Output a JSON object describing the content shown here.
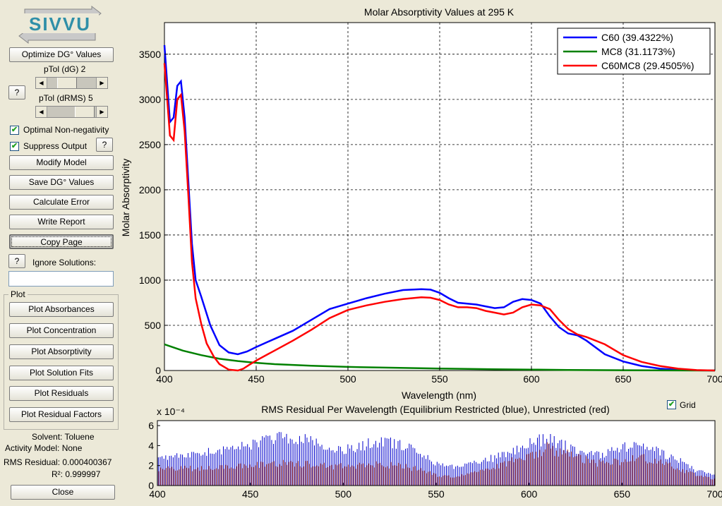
{
  "logo": {
    "text": "SIVVU"
  },
  "controls": {
    "optimize_label": "Optimize DG° Values",
    "ptol_dg_label": "pTol (dG) 2",
    "ptol_drms_label": "pTol (dRMS) 5",
    "help_label": "?",
    "optimal_nonneg_label": "Optimal Non-negativity",
    "optimal_nonneg_checked": true,
    "suppress_output_label": "Suppress Output",
    "suppress_output_checked": true,
    "modify_model_label": "Modify Model",
    "save_dg_label": "Save DG° Values",
    "calc_error_label": "Calculate Error",
    "write_report_label": "Write Report",
    "copy_page_label": "Copy Page",
    "ignore_solutions_label": "Ignore Solutions:",
    "ignore_solutions_value": ""
  },
  "plot_panel": {
    "title": "Plot",
    "buttons": [
      "Plot Absorbances",
      "Plot Concentration",
      "Plot Absorptivity",
      "Plot Solution Fits",
      "Plot Residuals",
      "Plot Residual Factors"
    ]
  },
  "info": {
    "solvent": "Solvent: Toluene",
    "activity_model": "Activity Model: None",
    "rms_residual": "RMS Residual: 0.000400367",
    "r2": "R²: 0.999997"
  },
  "close_label": "Close",
  "grid_toggle": {
    "label": "Grid",
    "checked": true
  },
  "colors": {
    "c60": "#0000ff",
    "mc8": "#008000",
    "c60mc8": "#ff0000",
    "bar_blue": "#0000cc",
    "bar_red": "#8b1a1a"
  },
  "chart_data": [
    {
      "type": "line",
      "title": "Molar Absorptivity Values at 295 K",
      "xlabel": "Wavelength (nm)",
      "ylabel": "Molar Absorptivity",
      "xlim": [
        400,
        700
      ],
      "ylim": [
        0,
        3850
      ],
      "xticks": [
        400,
        450,
        500,
        550,
        600,
        650,
        700
      ],
      "yticks": [
        0,
        500,
        1000,
        1500,
        2000,
        2500,
        3000,
        3500
      ],
      "grid": true,
      "legend_position": "top-right",
      "series": [
        {
          "name": "C60  (39.4322%)",
          "color": "#0000ff",
          "x": [
            400,
            403,
            405,
            407,
            409,
            411,
            413,
            415,
            417,
            420,
            425,
            430,
            435,
            440,
            445,
            450,
            460,
            470,
            480,
            490,
            500,
            510,
            520,
            530,
            540,
            545,
            550,
            555,
            560,
            565,
            570,
            575,
            580,
            585,
            590,
            595,
            600,
            605,
            610,
            615,
            620,
            625,
            630,
            640,
            650,
            660,
            670,
            680,
            690,
            700
          ],
          "y": [
            3600,
            2750,
            2800,
            3150,
            3200,
            2800,
            2100,
            1400,
            1000,
            820,
            500,
            280,
            200,
            180,
            210,
            260,
            350,
            440,
            560,
            680,
            740,
            800,
            850,
            890,
            900,
            895,
            860,
            800,
            750,
            740,
            730,
            710,
            690,
            700,
            760,
            790,
            780,
            740,
            600,
            480,
            410,
            390,
            330,
            180,
            100,
            50,
            20,
            8,
            2,
            0
          ]
        },
        {
          "name": "MC8  (31.1173%)",
          "color": "#008000",
          "x": [
            400,
            410,
            420,
            430,
            440,
            450,
            460,
            480,
            500,
            520,
            550,
            580,
            600,
            620,
            650,
            680,
            700
          ],
          "y": [
            290,
            220,
            170,
            130,
            105,
            85,
            70,
            52,
            40,
            32,
            22,
            14,
            10,
            6,
            3,
            1,
            0
          ]
        },
        {
          "name": "C60MC8  (29.4505%)",
          "color": "#ff0000",
          "x": [
            400,
            403,
            405,
            407,
            409,
            411,
            413,
            415,
            417,
            420,
            423,
            427,
            430,
            435,
            440,
            443,
            446,
            450,
            460,
            470,
            480,
            490,
            500,
            510,
            520,
            530,
            540,
            545,
            550,
            555,
            560,
            565,
            570,
            575,
            580,
            585,
            590,
            595,
            600,
            605,
            610,
            615,
            620,
            625,
            630,
            640,
            650,
            660,
            670,
            680,
            690,
            700
          ],
          "y": [
            3400,
            2600,
            2550,
            3000,
            3050,
            2650,
            1950,
            1200,
            800,
            520,
            300,
            150,
            70,
            10,
            0,
            20,
            60,
            110,
            220,
            330,
            450,
            580,
            670,
            720,
            760,
            790,
            810,
            805,
            780,
            730,
            700,
            700,
            690,
            660,
            640,
            620,
            640,
            700,
            730,
            720,
            680,
            560,
            460,
            400,
            370,
            290,
            170,
            95,
            50,
            20,
            5,
            0
          ]
        }
      ]
    },
    {
      "type": "bar",
      "title": "RMS Residual Per Wavelength (Equilibrium Restricted (blue), Unrestricted (red)",
      "exponent_label": "x 10⁻⁴",
      "xlim": [
        400,
        700
      ],
      "ylim": [
        0,
        6.5
      ],
      "xticks": [
        400,
        450,
        500,
        550,
        600,
        650,
        700
      ],
      "yticks": [
        0,
        2,
        4,
        6
      ],
      "series": [
        {
          "name": "Equilibrium Restricted",
          "color": "#0000cc",
          "x": [
            400,
            410,
            420,
            430,
            440,
            450,
            460,
            470,
            480,
            490,
            500,
            510,
            520,
            530,
            540,
            550,
            560,
            570,
            580,
            590,
            600,
            610,
            620,
            630,
            640,
            650,
            660,
            670,
            680,
            690,
            700
          ],
          "y": [
            3.1,
            3.3,
            3.4,
            4.0,
            4.2,
            4.7,
            5.3,
            5.6,
            5.3,
            4.4,
            4.1,
            4.6,
            5.0,
            4.7,
            4.1,
            2.4,
            2.1,
            2.6,
            3.1,
            3.9,
            4.9,
            5.3,
            4.5,
            3.6,
            3.6,
            4.3,
            4.7,
            3.8,
            3.0,
            1.7,
            1.2
          ]
        },
        {
          "name": "Unrestricted",
          "color": "#8b1a1a",
          "x": [
            400,
            410,
            420,
            430,
            440,
            450,
            460,
            470,
            480,
            490,
            500,
            510,
            520,
            530,
            540,
            550,
            560,
            570,
            580,
            590,
            600,
            610,
            620,
            630,
            640,
            650,
            660,
            670,
            680,
            690,
            700
          ],
          "y": [
            1.9,
            2.0,
            2.0,
            2.2,
            2.3,
            2.4,
            2.5,
            2.6,
            2.5,
            2.3,
            2.3,
            2.4,
            2.5,
            2.3,
            1.9,
            1.2,
            1.1,
            1.5,
            2.0,
            2.8,
            3.6,
            4.4,
            3.8,
            3.0,
            2.5,
            2.9,
            3.3,
            2.8,
            2.0,
            1.2,
            0.8
          ]
        }
      ]
    }
  ]
}
